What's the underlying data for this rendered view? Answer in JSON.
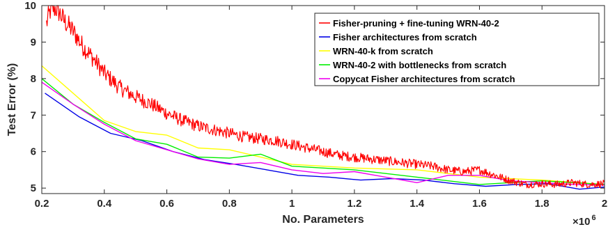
{
  "chart_data": {
    "type": "line",
    "xlabel": "No. Parameters",
    "ylabel": "Test Error (%)",
    "x_multiplier_label": "×10",
    "x_multiplier_exponent": "6",
    "xlim": [
      0.2,
      2.0
    ],
    "ylim": [
      4.85,
      10.0
    ],
    "xticks": [
      0.2,
      0.4,
      0.6,
      0.8,
      1.0,
      1.2,
      1.4,
      1.6,
      1.8,
      2.0
    ],
    "xtick_labels": [
      "0.2",
      "0.4",
      "0.6",
      "0.8",
      "1",
      "1.2",
      "1.4",
      "1.6",
      "1.8",
      "2"
    ],
    "yticks": [
      5,
      6,
      7,
      8,
      9,
      10
    ],
    "ytick_labels": [
      "5",
      "6",
      "7",
      "8",
      "9",
      "10"
    ],
    "grid": false,
    "legend_position": "top-right",
    "series": [
      {
        "name": "Fisher-pruning + fine-tuning WRN-40-2",
        "color": "#ff0000",
        "noisy": true,
        "x": [
          0.215,
          0.23,
          0.25,
          0.27,
          0.3,
          0.33,
          0.36,
          0.4,
          0.45,
          0.5,
          0.55,
          0.6,
          0.65,
          0.7,
          0.75,
          0.8,
          0.85,
          0.9,
          0.95,
          1.0,
          1.05,
          1.1,
          1.15,
          1.2,
          1.25,
          1.3,
          1.35,
          1.4,
          1.45,
          1.5,
          1.55,
          1.6,
          1.65,
          1.7,
          1.75,
          1.8,
          1.85,
          1.9,
          1.95,
          2.0
        ],
        "values": [
          9.5,
          9.95,
          9.9,
          9.6,
          9.3,
          8.9,
          8.6,
          8.15,
          7.75,
          7.5,
          7.3,
          7.05,
          6.85,
          6.7,
          6.6,
          6.5,
          6.4,
          6.35,
          6.3,
          6.2,
          6.1,
          6.0,
          5.9,
          5.85,
          5.8,
          5.75,
          5.7,
          5.65,
          5.6,
          5.5,
          5.45,
          5.5,
          5.35,
          5.2,
          5.1,
          5.12,
          5.1,
          5.15,
          5.1,
          5.12
        ]
      },
      {
        "name": "Fisher architectures from scratch",
        "color": "#0000e6",
        "noisy": false,
        "x": [
          0.21,
          0.32,
          0.42,
          0.52,
          0.62,
          0.72,
          0.82,
          0.92,
          1.02,
          1.12,
          1.22,
          1.32,
          1.42,
          1.52,
          1.62,
          1.72,
          1.82,
          1.92,
          2.0
        ],
        "values": [
          7.6,
          6.95,
          6.5,
          6.3,
          6.0,
          5.78,
          5.65,
          5.5,
          5.35,
          5.3,
          5.22,
          5.26,
          5.22,
          5.12,
          5.05,
          5.1,
          5.12,
          4.97,
          5.03
        ]
      },
      {
        "name": "WRN-40-k from scratch",
        "color": "#ffff00",
        "noisy": false,
        "x": [
          0.2,
          0.4,
          0.5,
          0.6,
          0.7,
          0.8,
          0.9,
          1.0,
          1.2,
          1.4,
          1.6,
          1.8,
          2.0
        ],
        "values": [
          8.35,
          6.85,
          6.55,
          6.45,
          6.1,
          6.05,
          5.85,
          5.65,
          5.55,
          5.5,
          5.3,
          5.22,
          5.1
        ]
      },
      {
        "name": "WRN-40-2 with bottlenecks from scratch",
        "color": "#00ee00",
        "noisy": false,
        "x": [
          0.2,
          0.3,
          0.4,
          0.5,
          0.6,
          0.7,
          0.8,
          0.9,
          1.0,
          1.1,
          1.2,
          1.3,
          1.4,
          1.5,
          1.6,
          1.7,
          1.8,
          1.9,
          2.0
        ],
        "values": [
          8.0,
          7.3,
          6.8,
          6.35,
          6.2,
          5.85,
          5.82,
          5.93,
          5.6,
          5.55,
          5.5,
          5.4,
          5.3,
          5.2,
          5.1,
          5.15,
          5.2,
          5.15,
          5.1
        ]
      },
      {
        "name": "Copycat Fisher architectures from scratch",
        "color": "#ee00ee",
        "noisy": false,
        "x": [
          0.2,
          0.3,
          0.4,
          0.5,
          0.6,
          0.7,
          0.8,
          0.9,
          1.0,
          1.1,
          1.2,
          1.3,
          1.4,
          1.5,
          1.6,
          1.7,
          1.8,
          1.9,
          2.0
        ],
        "values": [
          7.9,
          7.3,
          6.75,
          6.3,
          6.05,
          5.8,
          5.65,
          5.7,
          5.5,
          5.4,
          5.45,
          5.3,
          5.15,
          5.35,
          5.35,
          5.2,
          5.15,
          5.1,
          5.08
        ]
      }
    ]
  }
}
